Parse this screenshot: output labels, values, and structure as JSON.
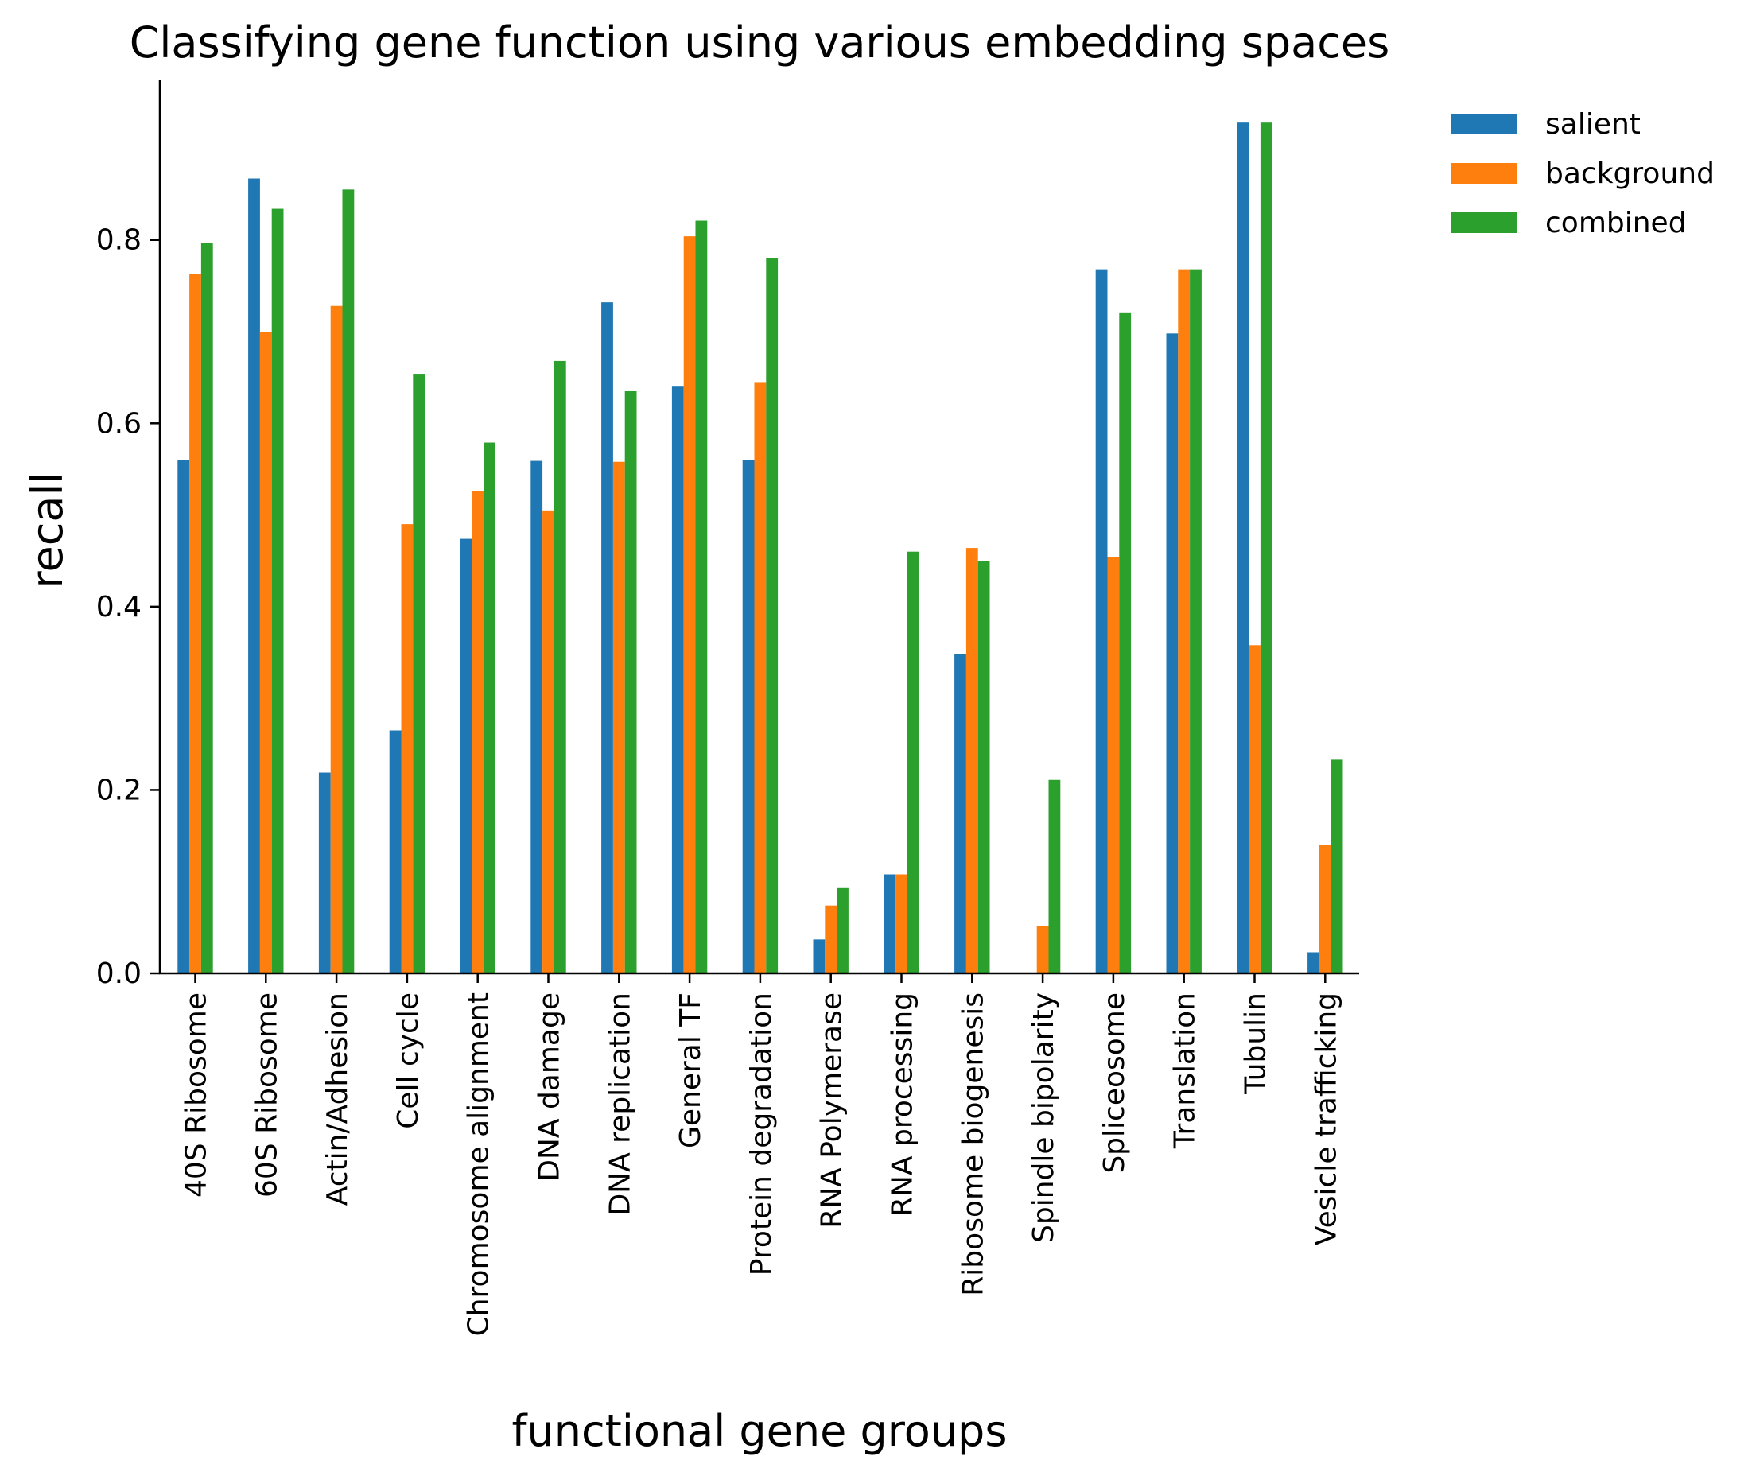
{
  "chart_data": {
    "type": "bar",
    "title": "Classifying gene function using various embedding spaces",
    "xlabel": "functional gene groups",
    "ylabel": "recall",
    "ylim": [
      0,
      0.975
    ],
    "yticks": [
      "0.0",
      "0.2",
      "0.4",
      "0.6",
      "0.8"
    ],
    "grid": false,
    "legend_position": "right, outside plot, top",
    "categories": [
      "40S Ribosome",
      "60S Ribosome",
      "Actin/Adhesion",
      "Cell cycle",
      "Chromosome alignment",
      "DNA damage",
      "DNA replication",
      "General TF",
      "Protein degradation",
      "RNA Polymerase",
      "RNA processing",
      "Ribosome biogenesis",
      "Spindle bipolarity",
      "Spliceosome",
      "Translation",
      "Tubulin",
      "Vesicle trafficking"
    ],
    "series": [
      {
        "name": "salient",
        "color": "#1f77b4",
        "values": [
          0.56,
          0.867,
          0.219,
          0.265,
          0.474,
          0.559,
          0.732,
          0.64,
          0.56,
          0.037,
          0.108,
          0.348,
          0.0,
          0.768,
          0.698,
          0.928,
          0.023
        ]
      },
      {
        "name": "background",
        "color": "#ff7f0e",
        "values": [
          0.763,
          0.7,
          0.728,
          0.49,
          0.526,
          0.505,
          0.558,
          0.804,
          0.645,
          0.074,
          0.108,
          0.464,
          0.052,
          0.454,
          0.768,
          0.358,
          0.14
        ]
      },
      {
        "name": "combined",
        "color": "#2ca02c",
        "values": [
          0.797,
          0.834,
          0.855,
          0.654,
          0.579,
          0.668,
          0.635,
          0.821,
          0.78,
          0.093,
          0.46,
          0.45,
          0.211,
          0.721,
          0.768,
          0.928,
          0.233
        ]
      }
    ]
  }
}
